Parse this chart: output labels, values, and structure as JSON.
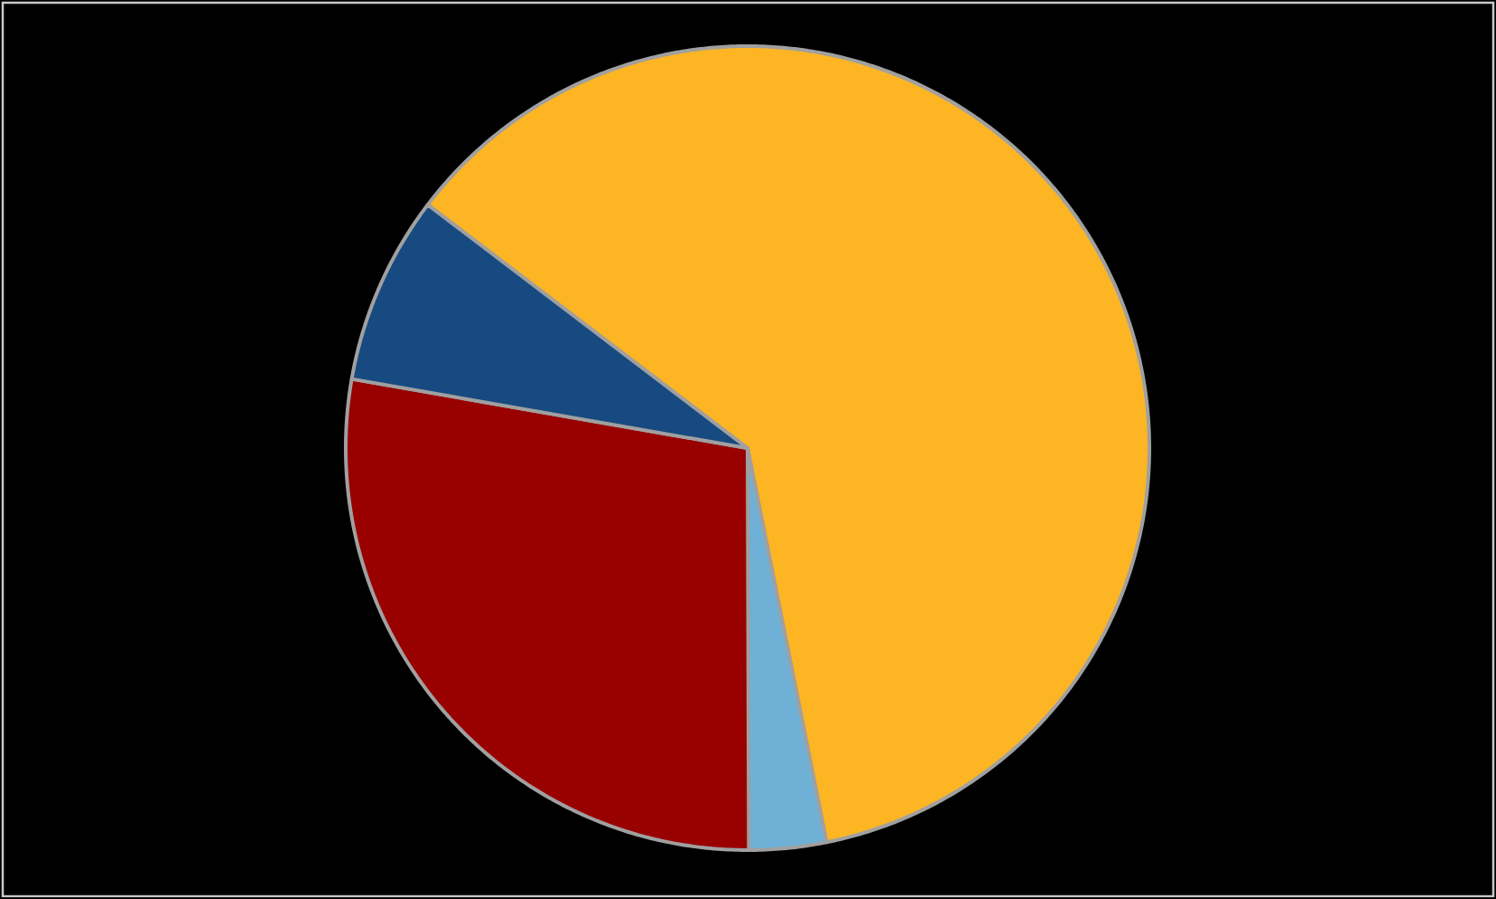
{
  "chart_data": {
    "type": "pie",
    "categories": [
      null,
      null,
      null,
      null
    ],
    "values": [
      61.5,
      3.1,
      27.8,
      7.6
    ],
    "colors": [
      "#FDB523",
      "#6FB1D6",
      "#990000",
      "#174A80"
    ]
  }
}
